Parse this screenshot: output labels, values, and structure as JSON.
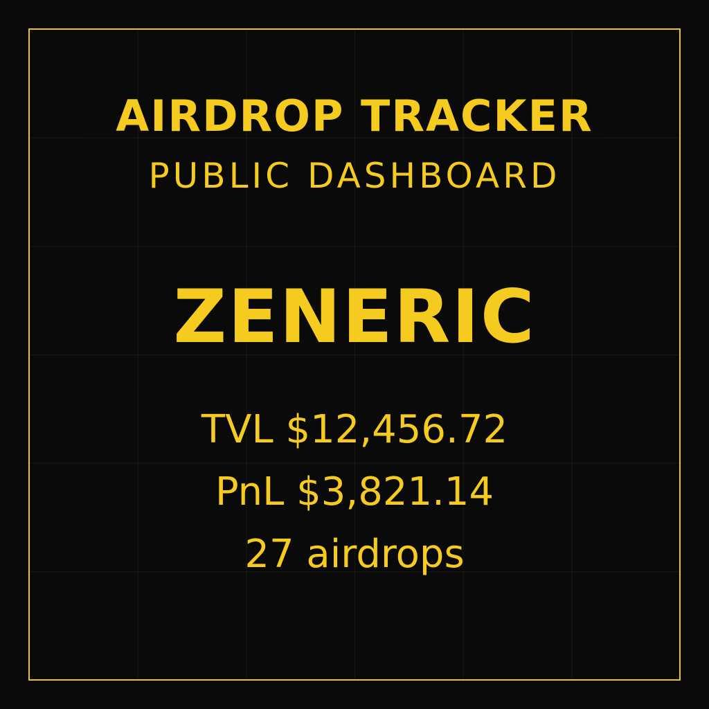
{
  "header": {
    "title": "AIRDROP TRACKER",
    "subtitle": "PUBLIC DASHBOARD"
  },
  "profile": {
    "name": "ZENERIC"
  },
  "stats": {
    "tvl": "TVL $12,456.72",
    "pnl": "PnL $3,821.14",
    "airdrops": "27 airdrops"
  },
  "colors": {
    "accent": "#f6cb1f",
    "background": "#0a0a0a"
  }
}
